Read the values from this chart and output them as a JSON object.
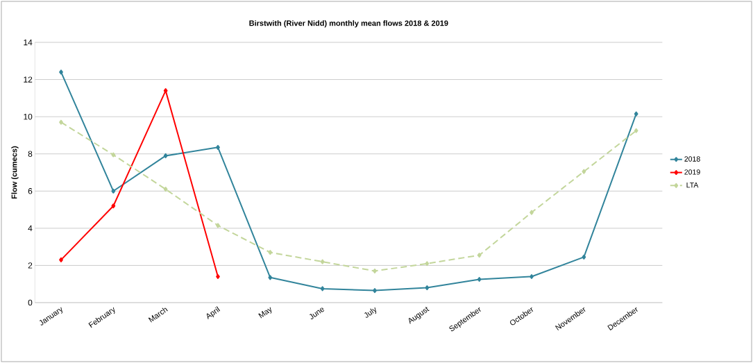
{
  "chart_data": {
    "type": "line",
    "title": "Birstwith (River Nidd) monthly mean flows 2018 & 2019",
    "ylabel": "Flow (cumecs)",
    "categories": [
      "January",
      "February",
      "March",
      "April",
      "May",
      "June",
      "July",
      "August",
      "September",
      "October",
      "November",
      "December"
    ],
    "series": [
      {
        "name": "2018",
        "color": "#31849b",
        "values": [
          12.4,
          6.0,
          7.9,
          8.35,
          1.35,
          0.75,
          0.65,
          0.8,
          1.25,
          1.4,
          2.45,
          10.15
        ]
      },
      {
        "name": "2019",
        "color": "#ff0000",
        "values": [
          2.3,
          5.2,
          11.4,
          1.4,
          null,
          null,
          null,
          null,
          null,
          null,
          null,
          null
        ]
      },
      {
        "name": "LTA",
        "color": "#c3d69b",
        "line_style": "dashed",
        "values": [
          9.7,
          7.95,
          6.1,
          4.15,
          2.7,
          2.2,
          1.7,
          2.1,
          2.55,
          4.85,
          7.05,
          9.25
        ]
      }
    ],
    "ylim": [
      0,
      14
    ],
    "yticks": [
      0,
      2,
      4,
      6,
      8,
      10,
      12,
      14
    ],
    "grid": "y",
    "legend": "right",
    "marker": "diamond"
  }
}
